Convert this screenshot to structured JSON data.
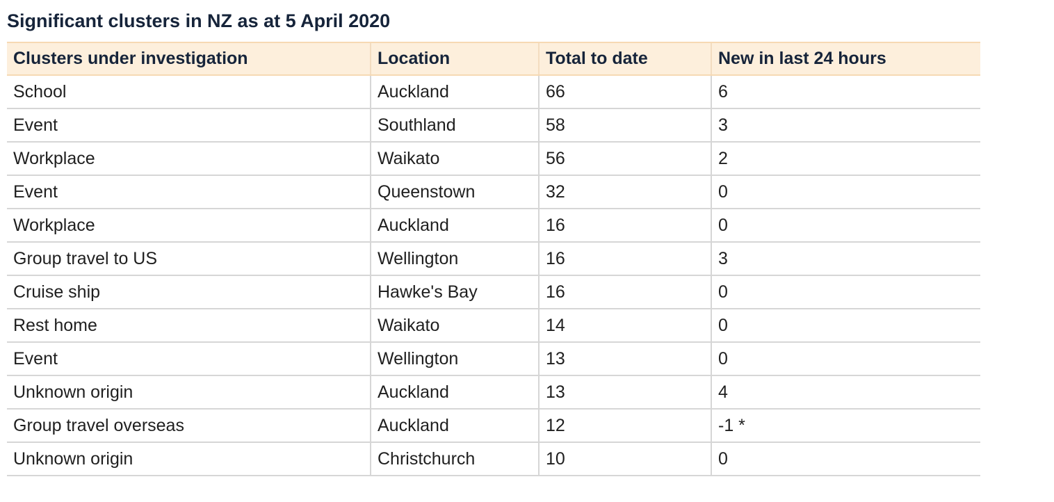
{
  "title": "Significant clusters in NZ as at 5 April 2020",
  "table": {
    "headers": [
      "Clusters under investigation",
      "Location",
      "Total to date",
      "New in last 24 hours"
    ],
    "rows": [
      [
        "School",
        "Auckland",
        "66",
        "6"
      ],
      [
        "Event",
        "Southland",
        "58",
        "3"
      ],
      [
        "Workplace",
        "Waikato",
        "56",
        "2"
      ],
      [
        "Event",
        "Queenstown",
        "32",
        "0"
      ],
      [
        "Workplace",
        "Auckland",
        "16",
        "0"
      ],
      [
        "Group travel to US",
        "Wellington",
        "16",
        "3"
      ],
      [
        "Cruise ship",
        "Hawke's Bay",
        "16",
        "0"
      ],
      [
        "Rest home",
        "Waikato",
        "14",
        "0"
      ],
      [
        "Event",
        "Wellington",
        "13",
        "0"
      ],
      [
        "Unknown origin",
        "Auckland",
        "13",
        "4"
      ],
      [
        "Group travel overseas",
        "Auckland",
        "12",
        "-1 *"
      ],
      [
        "Unknown origin",
        "Christchurch",
        "10",
        "0"
      ]
    ]
  },
  "colors": {
    "header_background": "#fdefdc",
    "header_border": "#f6d9b3",
    "row_border": "#d6d6d6",
    "title_text": "#16243a"
  }
}
